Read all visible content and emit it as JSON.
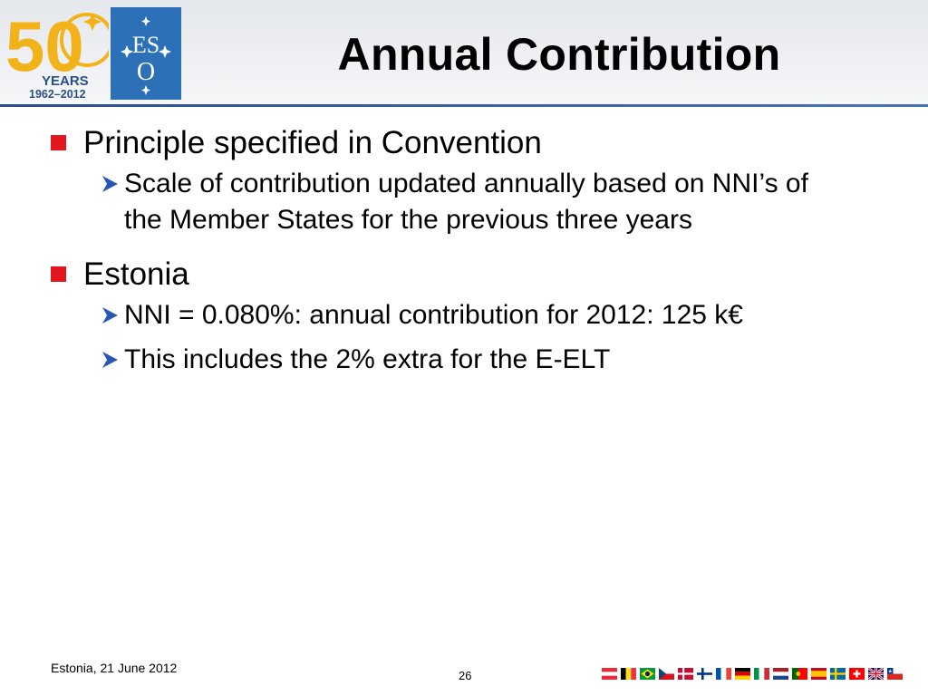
{
  "header": {
    "title": "Annual Contribution",
    "anniversary_logo": {
      "number": "50",
      "word": "YEARS",
      "years": "1962–2012"
    },
    "eso_logo": {
      "line1": "ES",
      "line2": "O"
    }
  },
  "bullets": [
    {
      "text": "Principle specified in Convention",
      "subs": [
        {
          "line1": "Scale of contribution updated annually based on NNI’s of",
          "line2": "the Member States for the previous three years"
        }
      ]
    },
    {
      "text": "Estonia",
      "subs": [
        {
          "line1": "NNI = 0.080%: annual contribution for 2012: 125 k€"
        },
        {
          "line1": "This includes the 2% extra for the E-ELT"
        }
      ]
    }
  ],
  "footer": {
    "left": "Estonia, 21 June  2012",
    "page": "26"
  },
  "flags": [
    "austria-flag",
    "belgium-flag",
    "brazil-flag",
    "czech-flag",
    "denmark-flag",
    "finland-flag",
    "france-flag",
    "germany-flag",
    "italy-flag",
    "netherlands-flag",
    "portugal-flag",
    "spain-flag",
    "sweden-flag",
    "switzerland-flag",
    "uk-flag",
    "chile-flag"
  ],
  "colors": {
    "bullet_red": "#e3171f",
    "arrow_blue": "#2a57b6",
    "eso_blue": "#2c71b8",
    "anniv_gold": "#f2b21a",
    "header_rule": "#2a4f86"
  }
}
